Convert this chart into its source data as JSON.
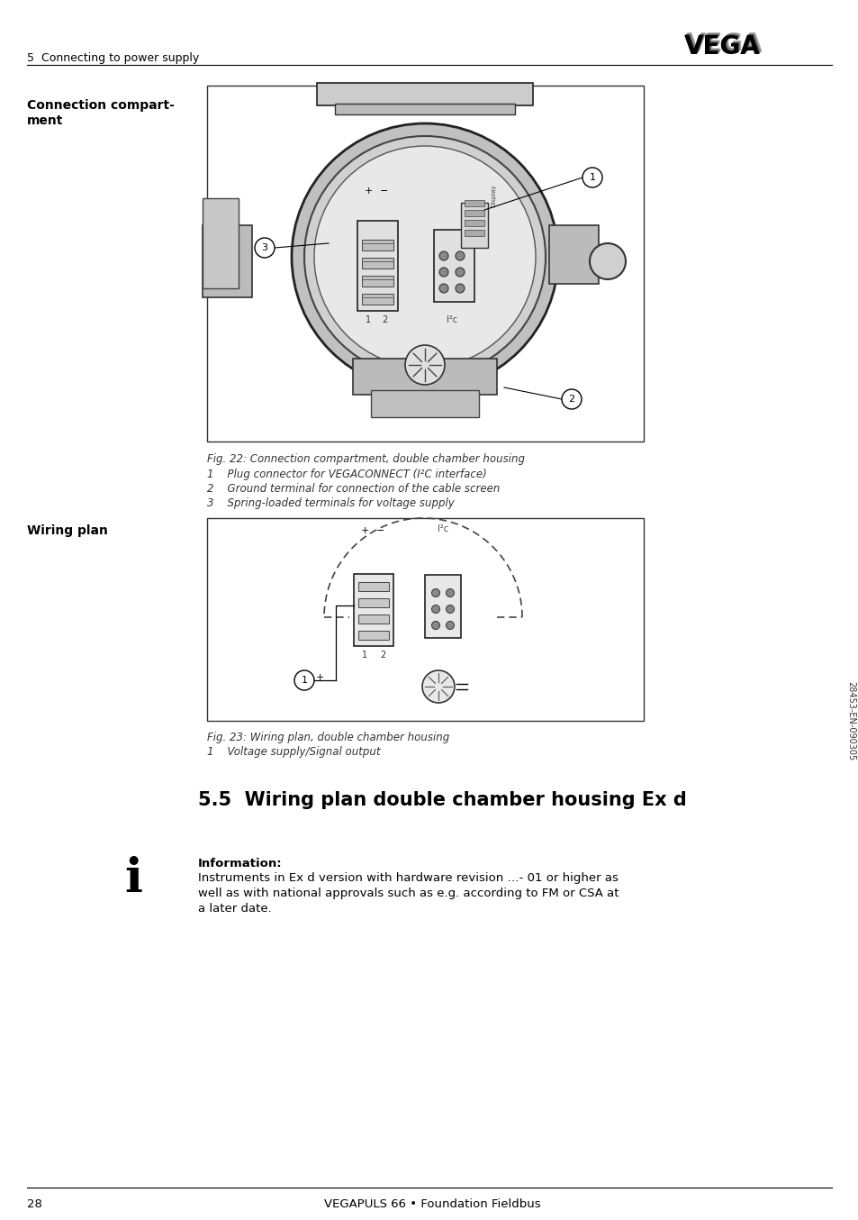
{
  "page_number": "28",
  "footer_text": "VEGAPULS 66 • Foundation Fieldbus",
  "header_section": "5  Connecting to power supply",
  "side_text": "28453-EN-090305",
  "section_label_1a": "Connection compart-",
  "section_label_1b": "ment",
  "fig22_caption": "Fig. 22: Connection compartment, double chamber housing",
  "fig22_item1": "1    Plug connector for VEGACONNECT (I²C interface)",
  "fig22_item2": "2    Ground terminal for connection of the cable screen",
  "fig22_item3": "3    Spring-loaded terminals for voltage supply",
  "section_label_2": "Wiring plan",
  "fig23_caption": "Fig. 23: Wiring plan, double chamber housing",
  "fig23_item1": "1    Voltage supply/Signal output",
  "section_55_title": "5.5  Wiring plan double chamber housing Ex d",
  "info_label": "Information:",
  "info_text": "Instruments in Ex d version with hardware revision …- 01 or higher as\nwell as with national approvals such as e.g. according to FM or CSA at\na later date.",
  "bg_color": "#ffffff",
  "text_color": "#000000"
}
